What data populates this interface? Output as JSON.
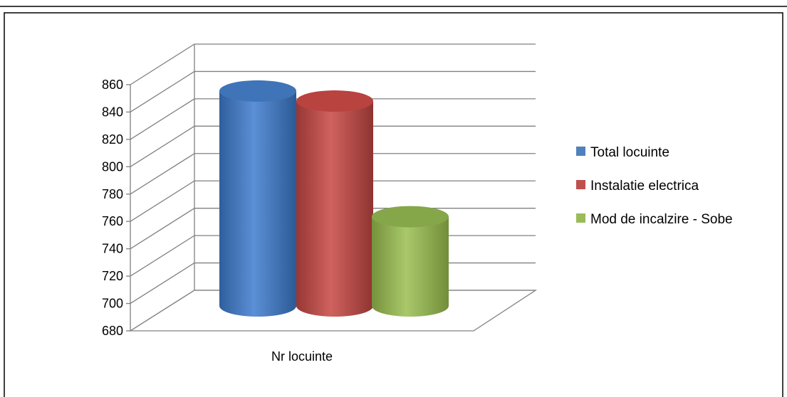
{
  "chart_data": {
    "type": "bar",
    "style": "3d-cylinder",
    "categories": [
      "Nr locuinte"
    ],
    "series": [
      {
        "name": "Total locuinte",
        "values": [
          851
        ],
        "color": "#4F81BD"
      },
      {
        "name": "Instalatie electrica",
        "values": [
          843
        ],
        "color": "#C0504D"
      },
      {
        "name": "Mod de incalzire - Sobe",
        "values": [
          751
        ],
        "color": "#9BBB59"
      }
    ],
    "ylim": [
      680,
      860
    ],
    "yticks": [
      680,
      700,
      720,
      740,
      760,
      780,
      800,
      820,
      840,
      860
    ],
    "grid": true,
    "legend": "right"
  }
}
